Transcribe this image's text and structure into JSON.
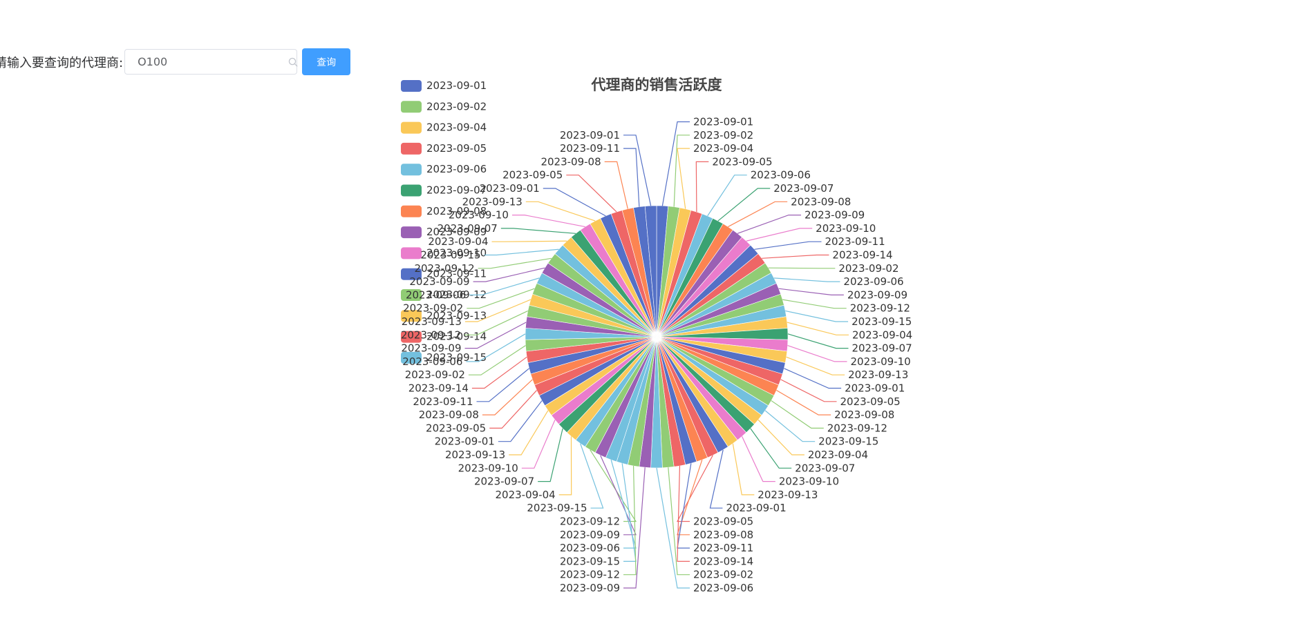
{
  "search": {
    "label": "请输入要查询的代理商:",
    "value": "O100",
    "button_label": "查询"
  },
  "icons": {
    "search": "search-icon"
  },
  "palette": [
    "#5470c6",
    "#91cc75",
    "#fac858",
    "#ee6666",
    "#73c0de",
    "#3ba272",
    "#fc8452",
    "#9a60b4",
    "#ea7ccc"
  ],
  "chart_data": {
    "type": "pie",
    "title": "代理商的销售活跃度",
    "legend_position": "top-left",
    "legend": [
      "2023-09-01",
      "2023-09-02",
      "2023-09-04",
      "2023-09-05",
      "2023-09-06",
      "2023-09-07",
      "2023-09-08",
      "2023-09-09",
      "2023-09-10",
      "2023-09-11",
      "2023-09-12",
      "2023-09-13",
      "2023-09-14",
      "2023-09-15"
    ],
    "slices": [
      {
        "name": "2023-09-01",
        "value": 1
      },
      {
        "name": "2023-09-02",
        "value": 1
      },
      {
        "name": "2023-09-04",
        "value": 1
      },
      {
        "name": "2023-09-05",
        "value": 1
      },
      {
        "name": "2023-09-06",
        "value": 1
      },
      {
        "name": "2023-09-07",
        "value": 1
      },
      {
        "name": "2023-09-08",
        "value": 1
      },
      {
        "name": "2023-09-09",
        "value": 1
      },
      {
        "name": "2023-09-10",
        "value": 1
      },
      {
        "name": "2023-09-11",
        "value": 1
      },
      {
        "name": "2023-09-14",
        "value": 1
      },
      {
        "name": "2023-09-02",
        "value": 1
      },
      {
        "name": "2023-09-06",
        "value": 1
      },
      {
        "name": "2023-09-09",
        "value": 1
      },
      {
        "name": "2023-09-12",
        "value": 1
      },
      {
        "name": "2023-09-15",
        "value": 1
      },
      {
        "name": "2023-09-04",
        "value": 1
      },
      {
        "name": "2023-09-07",
        "value": 1
      },
      {
        "name": "2023-09-10",
        "value": 1
      },
      {
        "name": "2023-09-13",
        "value": 1
      },
      {
        "name": "2023-09-01",
        "value": 1
      },
      {
        "name": "2023-09-05",
        "value": 1
      },
      {
        "name": "2023-09-08",
        "value": 1
      },
      {
        "name": "2023-09-12",
        "value": 1
      },
      {
        "name": "2023-09-15",
        "value": 1
      },
      {
        "name": "2023-09-04",
        "value": 1
      },
      {
        "name": "2023-09-07",
        "value": 1
      },
      {
        "name": "2023-09-10",
        "value": 1
      },
      {
        "name": "2023-09-13",
        "value": 1
      },
      {
        "name": "2023-09-01",
        "value": 1
      },
      {
        "name": "2023-09-05",
        "value": 1
      },
      {
        "name": "2023-09-08",
        "value": 1
      },
      {
        "name": "2023-09-11",
        "value": 1
      },
      {
        "name": "2023-09-14",
        "value": 1
      },
      {
        "name": "2023-09-02",
        "value": 1
      },
      {
        "name": "2023-09-06",
        "value": 1
      },
      {
        "name": "2023-09-09",
        "value": 1
      },
      {
        "name": "2023-09-12",
        "value": 1
      },
      {
        "name": "2023-09-15",
        "value": 1
      },
      {
        "name": "2023-09-06",
        "value": 1
      },
      {
        "name": "2023-09-09",
        "value": 1
      },
      {
        "name": "2023-09-12",
        "value": 1
      },
      {
        "name": "2023-09-15",
        "value": 1
      },
      {
        "name": "2023-09-04",
        "value": 1
      },
      {
        "name": "2023-09-07",
        "value": 1
      },
      {
        "name": "2023-09-10",
        "value": 1
      },
      {
        "name": "2023-09-13",
        "value": 1
      },
      {
        "name": "2023-09-01",
        "value": 1
      },
      {
        "name": "2023-09-05",
        "value": 1
      },
      {
        "name": "2023-09-08",
        "value": 1
      },
      {
        "name": "2023-09-11",
        "value": 1
      },
      {
        "name": "2023-09-14",
        "value": 1
      },
      {
        "name": "2023-09-02",
        "value": 1
      },
      {
        "name": "2023-09-06",
        "value": 1
      },
      {
        "name": "2023-09-09",
        "value": 1
      },
      {
        "name": "2023-09-12",
        "value": 1
      },
      {
        "name": "2023-09-13",
        "value": 1
      },
      {
        "name": "2023-09-02",
        "value": 1
      },
      {
        "name": "2023-09-06",
        "value": 1
      },
      {
        "name": "2023-09-09",
        "value": 1
      },
      {
        "name": "2023-09-12",
        "value": 1
      },
      {
        "name": "2023-09-15",
        "value": 1
      },
      {
        "name": "2023-09-04",
        "value": 1
      },
      {
        "name": "2023-09-07",
        "value": 1
      },
      {
        "name": "2023-09-10",
        "value": 1
      },
      {
        "name": "2023-09-13",
        "value": 1
      },
      {
        "name": "2023-09-01",
        "value": 1
      },
      {
        "name": "2023-09-05",
        "value": 1
      },
      {
        "name": "2023-09-08",
        "value": 1
      },
      {
        "name": "2023-09-11",
        "value": 1
      },
      {
        "name": "2023-09-01",
        "value": 1
      }
    ]
  }
}
